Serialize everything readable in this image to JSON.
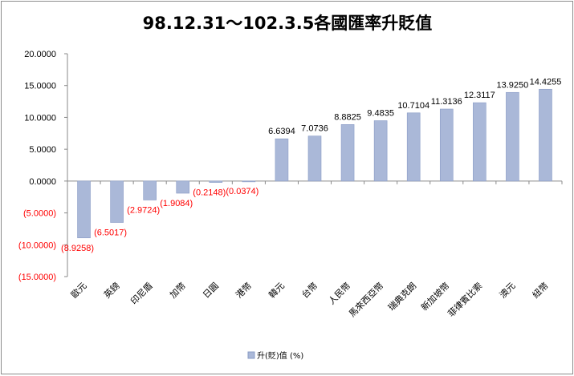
{
  "chart_data": {
    "type": "bar",
    "title": "98.12.31～102.3.5各國匯率升貶值",
    "categories": [
      "歐元",
      "英鎊",
      "印尼盾",
      "加幣",
      "日圓",
      "港幣",
      "韓元",
      "台幣",
      "人民幣",
      "馬來西亞幣",
      "瑞典克朗",
      "新加坡幣",
      "菲律賓比索",
      "澳元",
      "紐幣"
    ],
    "series": [
      {
        "name": "升(貶)值 (%)",
        "values": [
          -8.9258,
          -6.5017,
          -2.9724,
          -1.9084,
          -0.2148,
          -0.0374,
          6.6394,
          7.0736,
          8.8825,
          9.4835,
          10.7104,
          11.3136,
          12.3117,
          13.925,
          14.4255
        ],
        "labels": [
          "(8.9258)",
          "(6.5017)",
          "(2.9724)",
          "(1.9084)",
          "(0.2148)",
          "(0.0374)",
          "6.6394",
          "7.0736",
          "8.8825",
          "9.4835",
          "10.7104",
          "11.3136",
          "12.3117",
          "13.9250",
          "14.4255"
        ]
      }
    ],
    "ylim": [
      -15,
      20
    ],
    "yticks": [
      20,
      15,
      10,
      5,
      0,
      -5,
      -10,
      -15
    ],
    "ytick_labels": [
      "20.0000",
      "15.0000",
      "10.0000",
      "5.0000",
      "0.0000",
      "(5.0000)",
      "(10.0000)",
      "(15.0000)"
    ],
    "legend": "bottom",
    "grid": false,
    "colors": {
      "bar_fill": "#aab8d8",
      "bar_edge": "#8a9cc6",
      "negative_label": "#ff0000",
      "positive_label": "#000000",
      "axis": "#888888"
    }
  }
}
